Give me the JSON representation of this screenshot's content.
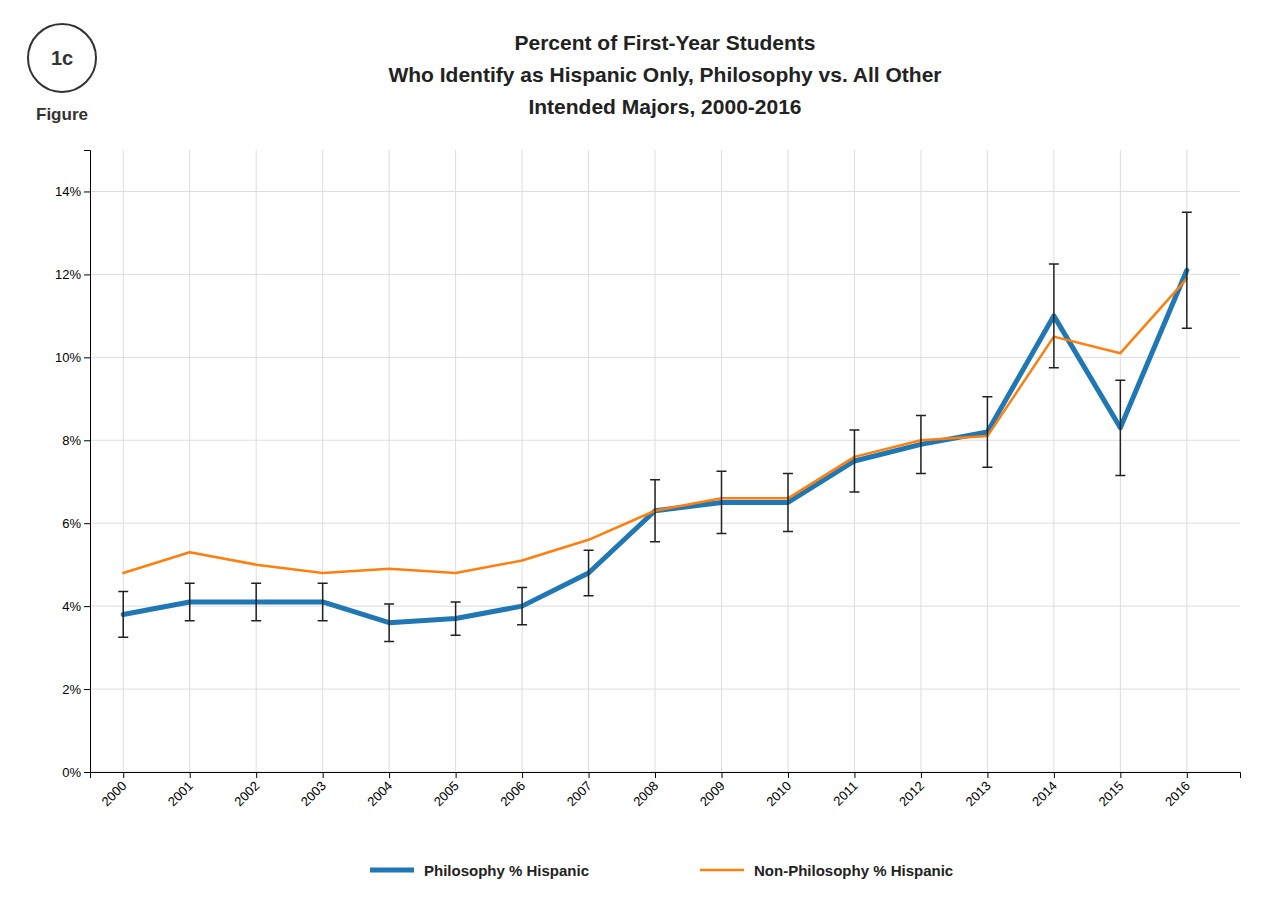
{
  "chart_data": {
    "type": "line",
    "title": [
      "Percent of First-Year Students",
      "Who Identify as Hispanic Only, Philosophy vs. All Other",
      "Intended Majors, 2000-2016"
    ],
    "annotations": [
      "1c",
      "Figure"
    ],
    "x": [
      2000,
      2001,
      2002,
      2003,
      2004,
      2005,
      2006,
      2007,
      2008,
      2009,
      2010,
      2011,
      2012,
      2013,
      2014,
      2015,
      2016
    ],
    "series": [
      {
        "name": "Philosophy % Hispanic",
        "values": [
          3.8,
          4.1,
          4.1,
          4.1,
          3.6,
          3.7,
          4.0,
          4.8,
          6.3,
          6.5,
          6.5,
          7.5,
          7.9,
          8.2,
          11.0,
          8.3,
          12.1
        ],
        "errors": [
          0.55,
          0.45,
          0.45,
          0.45,
          0.45,
          0.4,
          0.45,
          0.55,
          0.75,
          0.75,
          0.7,
          0.75,
          0.7,
          0.85,
          1.25,
          1.15,
          1.4
        ]
      },
      {
        "name": "Non-Philosophy % Hispanic",
        "values": [
          4.8,
          5.3,
          5.0,
          4.8,
          4.9,
          4.8,
          5.1,
          5.6,
          6.3,
          6.6,
          6.6,
          7.6,
          8.0,
          8.1,
          10.5,
          10.1,
          11.9
        ]
      }
    ],
    "xlim": [
      1999.5,
      2016.8
    ],
    "xticks": [
      2000,
      2001,
      2002,
      2003,
      2004,
      2005,
      2006,
      2007,
      2008,
      2009,
      2010,
      2011,
      2012,
      2013,
      2014,
      2015,
      2016
    ],
    "ylim": [
      0,
      15
    ],
    "yticks": [
      {
        "value": 0,
        "label": "0%"
      },
      {
        "value": 2,
        "label": "2%"
      },
      {
        "value": 4,
        "label": "4%"
      },
      {
        "value": 6,
        "label": "6%"
      },
      {
        "value": 8,
        "label": "8%"
      },
      {
        "value": 10,
        "label": "10%"
      },
      {
        "value": 12,
        "label": "12%"
      },
      {
        "value": 14,
        "label": "14%"
      }
    ],
    "grid": true,
    "legend": "bottom"
  }
}
